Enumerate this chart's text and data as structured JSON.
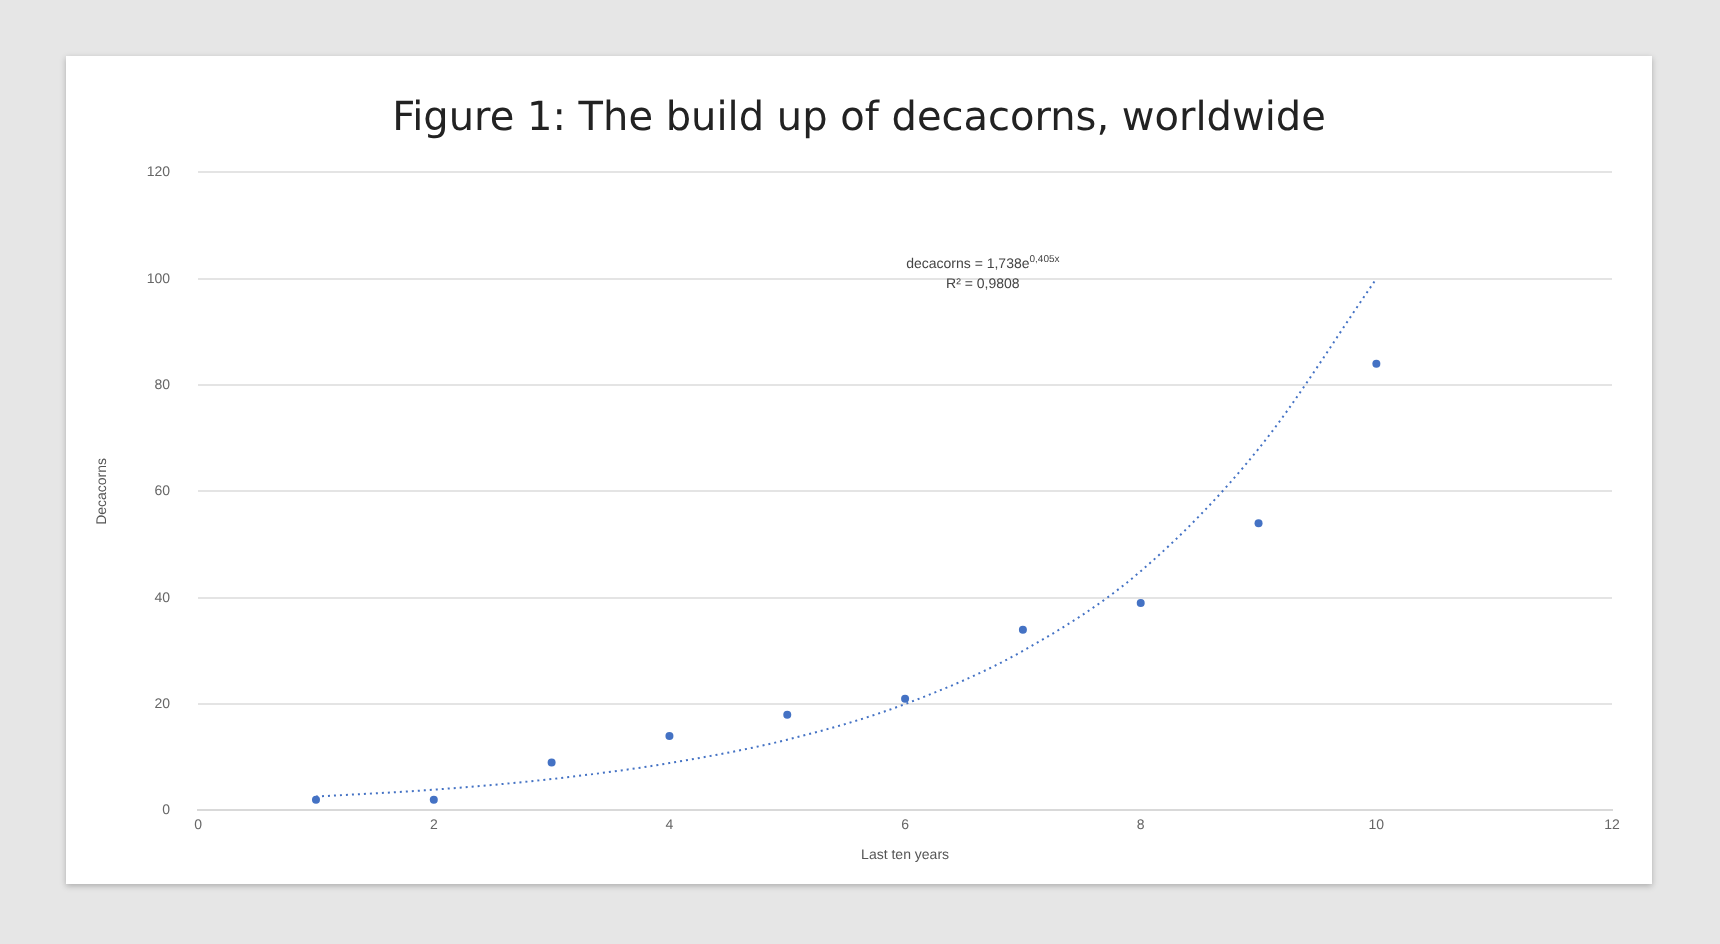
{
  "chart_data": {
    "type": "scatter",
    "title": "Figure 1: The build up of decacorns, worldwide",
    "xlabel": "Last ten years",
    "ylabel": "Decacorns",
    "xlim": [
      0,
      12
    ],
    "xticks": [
      0,
      2,
      4,
      6,
      8,
      10,
      12
    ],
    "ylim": [
      0,
      120
    ],
    "yticks": [
      0,
      20,
      40,
      60,
      80,
      100,
      120
    ],
    "grid": "y",
    "legend": false,
    "marker": "circle",
    "series": [
      {
        "color": "#4472c4",
        "x": [
          1,
          2,
          3,
          4,
          5,
          6,
          7,
          8,
          9,
          10
        ],
        "values": [
          2,
          2,
          9,
          14,
          18,
          21,
          34,
          39,
          54,
          84
        ]
      },
      {
        "type": "line",
        "color": "#4472c4",
        "line_style": "dotted",
        "marker": "none",
        "x": [
          1,
          2,
          3,
          4,
          5,
          6,
          7,
          8,
          9,
          10
        ],
        "values": [
          2.6,
          3.9,
          5.9,
          8.9,
          13.3,
          20,
          30,
          45,
          68,
          100
        ]
      }
    ],
    "annotations": [
      "decacorns = 1,738e$^{0,405x}$",
      "R² = 0,9808"
    ]
  }
}
